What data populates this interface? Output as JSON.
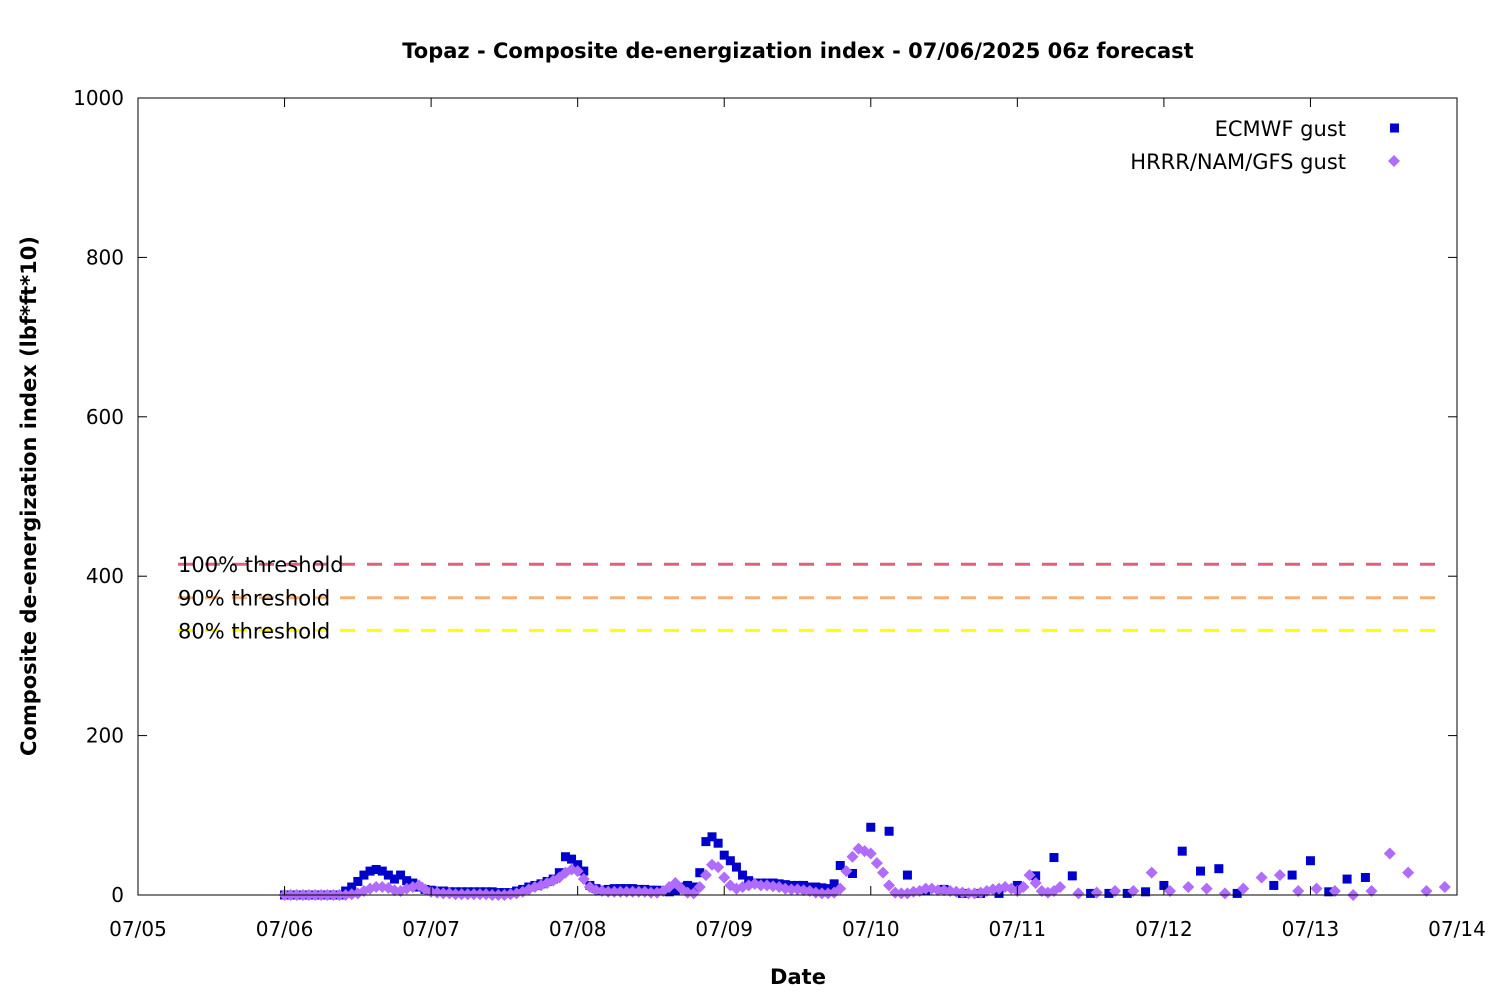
{
  "chart_data": {
    "type": "scatter",
    "title": "Topaz - Composite de-energization index - 07/06/2025 06z forecast",
    "xlabel": "Date",
    "ylabel": "Composite de-energization index (lbf*ft*10)",
    "x_range_hours": [
      0,
      216
    ],
    "x_ticks": [
      "07/05",
      "07/06",
      "07/07",
      "07/08",
      "07/09",
      "07/10",
      "07/11",
      "07/12",
      "07/13",
      "07/14"
    ],
    "ylim": [
      0,
      1000
    ],
    "y_ticks": [
      "0",
      "200",
      "400",
      "600",
      "800",
      "1000"
    ],
    "grid": false,
    "legend_position": "top-right",
    "thresholds": [
      {
        "name": "100% threshold",
        "value": 415,
        "color": "#e0607e"
      },
      {
        "name": "90% threshold",
        "value": 373,
        "color": "#f5b077"
      },
      {
        "name": "80% threshold",
        "value": 332,
        "color": "#ffff00"
      }
    ],
    "series": [
      {
        "name": "ECMWF gust",
        "marker": "square",
        "color": "#0000cc",
        "points": [
          [
            24,
            0
          ],
          [
            25,
            0
          ],
          [
            26,
            0
          ],
          [
            27,
            0
          ],
          [
            28,
            0
          ],
          [
            29,
            0
          ],
          [
            30,
            0
          ],
          [
            31,
            0
          ],
          [
            32,
            0
          ],
          [
            33,
            0
          ],
          [
            34,
            5
          ],
          [
            35,
            10
          ],
          [
            36,
            17
          ],
          [
            37,
            25
          ],
          [
            38,
            30
          ],
          [
            39,
            32
          ],
          [
            40,
            30
          ],
          [
            41,
            25
          ],
          [
            42,
            20
          ],
          [
            43,
            25
          ],
          [
            44,
            18
          ],
          [
            45,
            15
          ],
          [
            46,
            10
          ],
          [
            47,
            7
          ],
          [
            48,
            6
          ],
          [
            49,
            5
          ],
          [
            50,
            5
          ],
          [
            51,
            4
          ],
          [
            52,
            4
          ],
          [
            53,
            4
          ],
          [
            54,
            4
          ],
          [
            55,
            4
          ],
          [
            56,
            4
          ],
          [
            57,
            4
          ],
          [
            58,
            4
          ],
          [
            59,
            3
          ],
          [
            60,
            3
          ],
          [
            61,
            3
          ],
          [
            62,
            5
          ],
          [
            63,
            7
          ],
          [
            64,
            10
          ],
          [
            65,
            12
          ],
          [
            66,
            14
          ],
          [
            67,
            17
          ],
          [
            68,
            20
          ],
          [
            69,
            28
          ],
          [
            70,
            48
          ],
          [
            71,
            45
          ],
          [
            72,
            38
          ],
          [
            73,
            30
          ],
          [
            74,
            12
          ],
          [
            75,
            8
          ],
          [
            76,
            6
          ],
          [
            77,
            7
          ],
          [
            78,
            8
          ],
          [
            79,
            8
          ],
          [
            80,
            8
          ],
          [
            81,
            8
          ],
          [
            82,
            7
          ],
          [
            83,
            7
          ],
          [
            84,
            6
          ],
          [
            85,
            6
          ],
          [
            86,
            5
          ],
          [
            87,
            4
          ],
          [
            88,
            6
          ],
          [
            89,
            10
          ],
          [
            90,
            12
          ],
          [
            91,
            10
          ],
          [
            92,
            28
          ],
          [
            93,
            67
          ],
          [
            94,
            73
          ],
          [
            95,
            65
          ],
          [
            96,
            50
          ],
          [
            97,
            43
          ],
          [
            98,
            35
          ],
          [
            99,
            25
          ],
          [
            100,
            18
          ],
          [
            101,
            15
          ],
          [
            102,
            15
          ],
          [
            103,
            15
          ],
          [
            104,
            15
          ],
          [
            105,
            14
          ],
          [
            106,
            13
          ],
          [
            107,
            12
          ],
          [
            108,
            12
          ],
          [
            109,
            12
          ],
          [
            110,
            10
          ],
          [
            111,
            10
          ],
          [
            112,
            9
          ],
          [
            113,
            8
          ],
          [
            114,
            14
          ],
          [
            115,
            37
          ],
          [
            117,
            27
          ],
          [
            120,
            85
          ],
          [
            123,
            80
          ],
          [
            126,
            25
          ],
          [
            129,
            5
          ],
          [
            132,
            7
          ],
          [
            135,
            2
          ],
          [
            138,
            2
          ],
          [
            141,
            2
          ],
          [
            144,
            12
          ],
          [
            147,
            24
          ],
          [
            150,
            47
          ],
          [
            153,
            24
          ],
          [
            156,
            2
          ],
          [
            159,
            2
          ],
          [
            162,
            2
          ],
          [
            165,
            4
          ],
          [
            168,
            12
          ],
          [
            171,
            55
          ],
          [
            174,
            30
          ],
          [
            177,
            33
          ],
          [
            180,
            2
          ],
          [
            186,
            12
          ],
          [
            189,
            25
          ],
          [
            192,
            43
          ],
          [
            195,
            4
          ],
          [
            198,
            20
          ],
          [
            201,
            22
          ]
        ]
      },
      {
        "name": "HRRR/NAM/GFS gust",
        "marker": "diamond",
        "color": "#b06bff",
        "points": [
          [
            24,
            0
          ],
          [
            25,
            0
          ],
          [
            26,
            0
          ],
          [
            27,
            0
          ],
          [
            28,
            0
          ],
          [
            29,
            0
          ],
          [
            30,
            0
          ],
          [
            31,
            0
          ],
          [
            32,
            0
          ],
          [
            33,
            0
          ],
          [
            34,
            0
          ],
          [
            35,
            1
          ],
          [
            36,
            2
          ],
          [
            37,
            5
          ],
          [
            38,
            8
          ],
          [
            39,
            10
          ],
          [
            40,
            10
          ],
          [
            41,
            9
          ],
          [
            42,
            6
          ],
          [
            43,
            5
          ],
          [
            44,
            8
          ],
          [
            45,
            10
          ],
          [
            46,
            12
          ],
          [
            47,
            7
          ],
          [
            48,
            4
          ],
          [
            49,
            3
          ],
          [
            50,
            2
          ],
          [
            51,
            2
          ],
          [
            52,
            1
          ],
          [
            53,
            1
          ],
          [
            54,
            1
          ],
          [
            55,
            1
          ],
          [
            56,
            1
          ],
          [
            57,
            1
          ],
          [
            58,
            0
          ],
          [
            59,
            0
          ],
          [
            60,
            0
          ],
          [
            61,
            1
          ],
          [
            62,
            2
          ],
          [
            63,
            4
          ],
          [
            64,
            7
          ],
          [
            65,
            10
          ],
          [
            66,
            12
          ],
          [
            67,
            15
          ],
          [
            68,
            18
          ],
          [
            69,
            22
          ],
          [
            70,
            28
          ],
          [
            71,
            32
          ],
          [
            72,
            30
          ],
          [
            73,
            20
          ],
          [
            74,
            10
          ],
          [
            75,
            6
          ],
          [
            76,
            5
          ],
          [
            77,
            4
          ],
          [
            78,
            4
          ],
          [
            79,
            4
          ],
          [
            80,
            4
          ],
          [
            81,
            4
          ],
          [
            82,
            4
          ],
          [
            83,
            4
          ],
          [
            84,
            3
          ],
          [
            85,
            3
          ],
          [
            86,
            5
          ],
          [
            87,
            10
          ],
          [
            88,
            15
          ],
          [
            89,
            8
          ],
          [
            90,
            3
          ],
          [
            91,
            2
          ],
          [
            92,
            10
          ],
          [
            93,
            25
          ],
          [
            94,
            38
          ],
          [
            95,
            35
          ],
          [
            96,
            22
          ],
          [
            97,
            12
          ],
          [
            98,
            8
          ],
          [
            99,
            10
          ],
          [
            100,
            12
          ],
          [
            101,
            14
          ],
          [
            102,
            12
          ],
          [
            103,
            12
          ],
          [
            104,
            11
          ],
          [
            105,
            10
          ],
          [
            106,
            8
          ],
          [
            107,
            7
          ],
          [
            108,
            7
          ],
          [
            109,
            6
          ],
          [
            110,
            5
          ],
          [
            111,
            3
          ],
          [
            112,
            2
          ],
          [
            113,
            2
          ],
          [
            114,
            3
          ],
          [
            115,
            8
          ],
          [
            116,
            30
          ],
          [
            117,
            48
          ],
          [
            118,
            58
          ],
          [
            119,
            55
          ],
          [
            120,
            52
          ],
          [
            121,
            40
          ],
          [
            122,
            28
          ],
          [
            123,
            12
          ],
          [
            124,
            3
          ],
          [
            125,
            2
          ],
          [
            126,
            2
          ],
          [
            127,
            4
          ],
          [
            128,
            5
          ],
          [
            129,
            8
          ],
          [
            130,
            8
          ],
          [
            131,
            6
          ],
          [
            132,
            6
          ],
          [
            133,
            5
          ],
          [
            134,
            4
          ],
          [
            135,
            3
          ],
          [
            136,
            2
          ],
          [
            137,
            2
          ],
          [
            138,
            3
          ],
          [
            139,
            5
          ],
          [
            140,
            7
          ],
          [
            141,
            8
          ],
          [
            142,
            10
          ],
          [
            143,
            8
          ],
          [
            144,
            5
          ],
          [
            145,
            10
          ],
          [
            146,
            25
          ],
          [
            147,
            15
          ],
          [
            148,
            5
          ],
          [
            149,
            3
          ],
          [
            150,
            5
          ],
          [
            151,
            10
          ],
          [
            154,
            2
          ],
          [
            157,
            3
          ],
          [
            160,
            5
          ],
          [
            163,
            5
          ],
          [
            166,
            28
          ],
          [
            169,
            5
          ],
          [
            172,
            10
          ],
          [
            175,
            8
          ],
          [
            178,
            2
          ],
          [
            181,
            8
          ],
          [
            184,
            22
          ],
          [
            187,
            25
          ],
          [
            190,
            5
          ],
          [
            193,
            8
          ],
          [
            196,
            5
          ],
          [
            199,
            0
          ],
          [
            202,
            5
          ],
          [
            205,
            52
          ],
          [
            208,
            28
          ],
          [
            211,
            5
          ],
          [
            214,
            10
          ]
        ]
      }
    ]
  }
}
